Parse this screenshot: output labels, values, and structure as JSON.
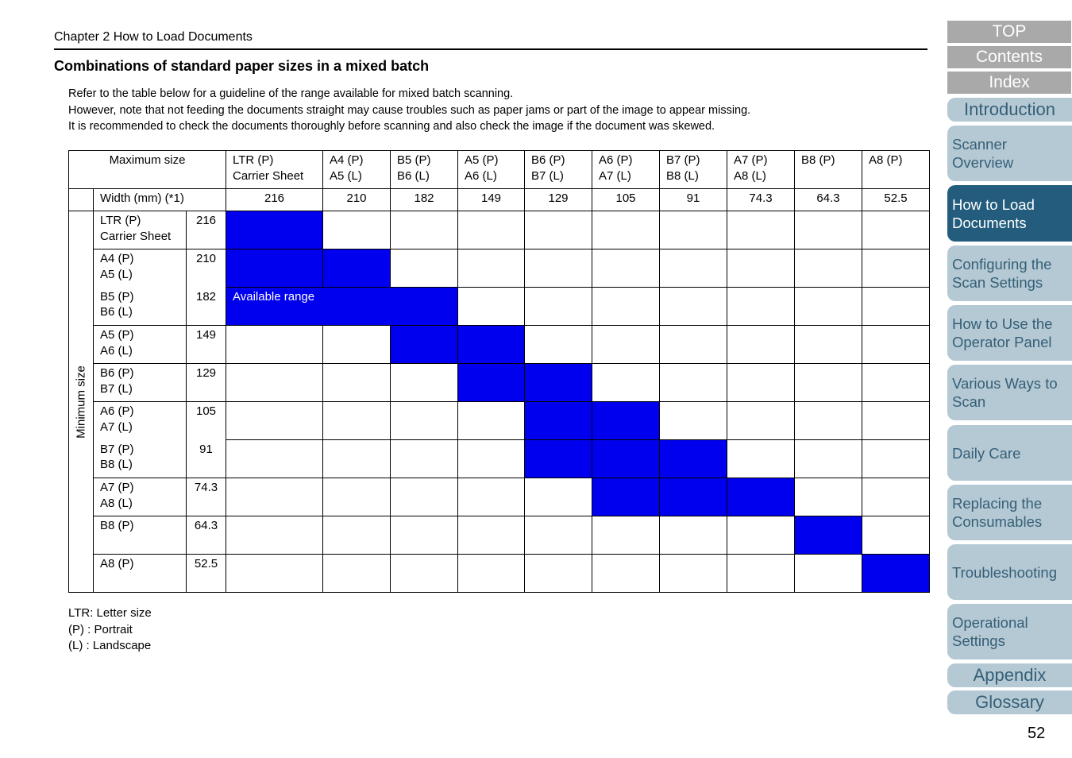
{
  "header": {
    "chapter": "Chapter 2 How to Load Documents",
    "title": "Combinations of standard paper sizes in a mixed batch"
  },
  "intro": [
    "Refer to the table below for a guideline of the range available for mixed batch scanning.",
    "However, note that not feeding the documents straight may cause troubles such as paper jams or part of the image to appear missing.",
    "It is recommended to check the documents thoroughly before scanning and also check the image if the document was skewed."
  ],
  "table": {
    "max_label": "Maximum size",
    "min_label": "Minimum size",
    "width_label": "Width (mm) (*1)",
    "available_label": "Available range",
    "columns": [
      {
        "l1": "LTR (P)",
        "l2": "Carrier Sheet",
        "width": "216"
      },
      {
        "l1": "A4 (P)",
        "l2": "A5 (L)",
        "width": "210"
      },
      {
        "l1": "B5 (P)",
        "l2": "B6 (L)",
        "width": "182"
      },
      {
        "l1": "A5 (P)",
        "l2": "A6 (L)",
        "width": "149"
      },
      {
        "l1": "B6 (P)",
        "l2": "B7 (L)",
        "width": "129"
      },
      {
        "l1": "A6 (P)",
        "l2": "A7 (L)",
        "width": "105"
      },
      {
        "l1": "B7 (P)",
        "l2": "B8 (L)",
        "width": "91"
      },
      {
        "l1": "A7 (P)",
        "l2": "A8 (L)",
        "width": "74.3"
      },
      {
        "l1": "B8 (P)",
        "l2": "",
        "width": "64.3"
      },
      {
        "l1": "A8 (P)",
        "l2": "",
        "width": "52.5"
      }
    ],
    "rows": [
      {
        "l1": "LTR (P)",
        "l2": "Carrier Sheet",
        "width": "216"
      },
      {
        "l1": "A4 (P)",
        "l2": "A5 (L)",
        "width": "210"
      },
      {
        "l1": "B5 (P)",
        "l2": "B6 (L)",
        "width": "182"
      },
      {
        "l1": "A5 (P)",
        "l2": "A6 (L)",
        "width": "149"
      },
      {
        "l1": "B6 (P)",
        "l2": "B7 (L)",
        "width": "129"
      },
      {
        "l1": "A6 (P)",
        "l2": "A7 (L)",
        "width": "105"
      },
      {
        "l1": "B7 (P)",
        "l2": "B8 (L)",
        "width": "91"
      },
      {
        "l1": "A7 (P)",
        "l2": "A8 (L)",
        "width": "74.3"
      },
      {
        "l1": "B8 (P)",
        "l2": "",
        "width": "64.3"
      },
      {
        "l1": "A8 (P)",
        "l2": "",
        "width": "52.5"
      }
    ],
    "available_cells": [
      [
        0,
        0
      ],
      [
        1,
        0
      ],
      [
        1,
        1
      ],
      [
        2,
        0
      ],
      [
        2,
        1
      ],
      [
        2,
        2
      ],
      [
        3,
        2
      ],
      [
        3,
        3
      ],
      [
        4,
        3
      ],
      [
        4,
        4
      ],
      [
        5,
        4
      ],
      [
        5,
        5
      ],
      [
        6,
        4
      ],
      [
        6,
        5
      ],
      [
        6,
        6
      ],
      [
        7,
        5
      ],
      [
        7,
        6
      ],
      [
        7,
        7
      ],
      [
        8,
        8
      ],
      [
        9,
        9
      ]
    ],
    "highlight_color": "#0000ee"
  },
  "legend": [
    "LTR: Letter size",
    "(P) : Portrait",
    "(L) : Landscape"
  ],
  "nav": {
    "top": "TOP",
    "contents": "Contents",
    "index": "Index",
    "introduction": "Introduction",
    "scanner_overview": [
      "Scanner",
      "Overview"
    ],
    "how_to_load": [
      "How to Load",
      "Documents"
    ],
    "configuring": [
      "Configuring the",
      "Scan Settings"
    ],
    "operator_panel": [
      "How to Use the",
      "Operator Panel"
    ],
    "various_ways": [
      "Various Ways to",
      "Scan"
    ],
    "daily_care": [
      "Daily Care"
    ],
    "replacing": [
      "Replacing the",
      "Consumables"
    ],
    "troubleshooting": [
      "Troubleshooting"
    ],
    "operational": [
      "Operational",
      "Settings"
    ],
    "appendix": "Appendix",
    "glossary": "Glossary"
  },
  "page_number": "52"
}
